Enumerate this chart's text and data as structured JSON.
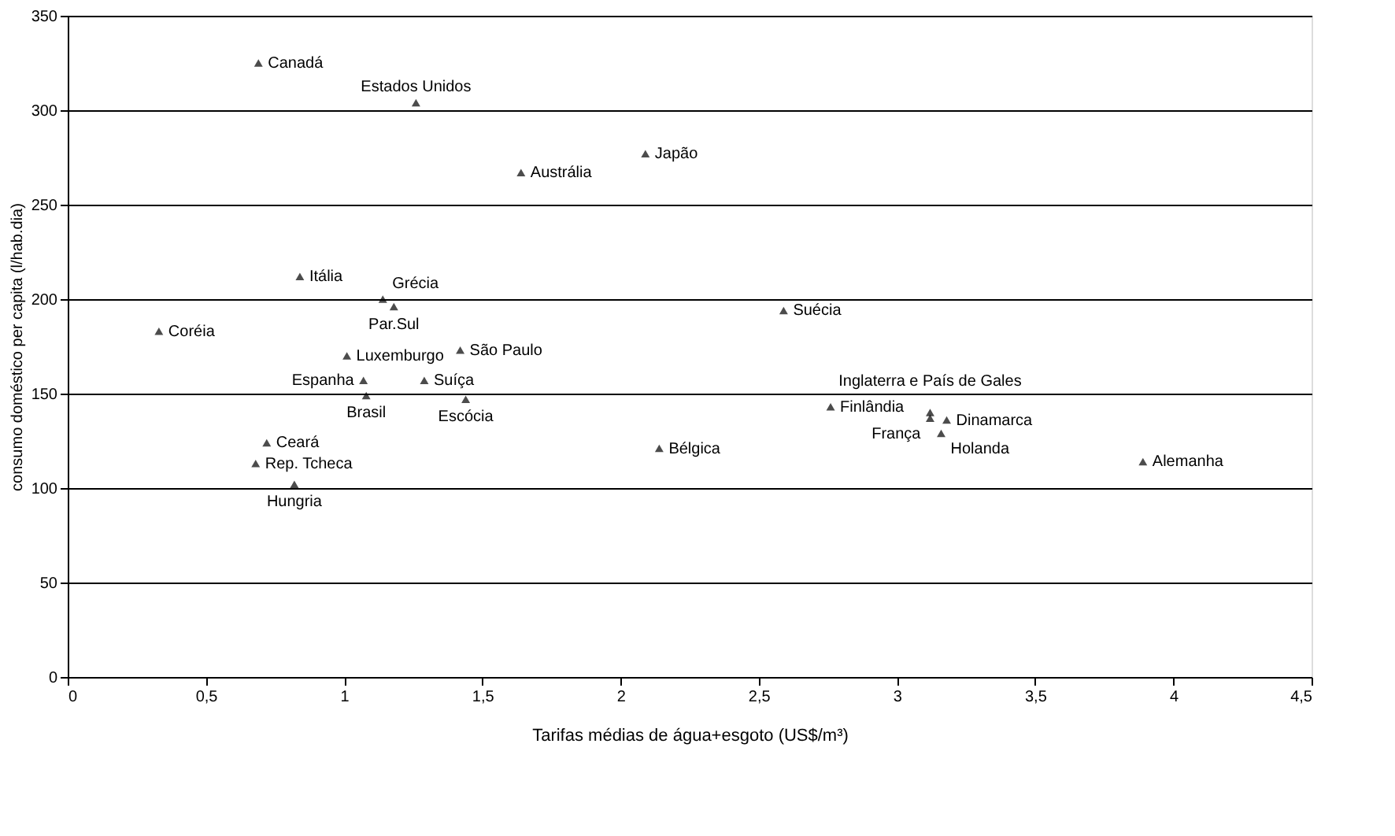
{
  "chart_data": {
    "type": "scatter",
    "xlabel": "Tarifas médias de água+esgoto (US$/m³)",
    "ylabel": "consumo doméstico per capita (l/hab.dia)",
    "x": [
      0.69,
      1.26,
      2.09,
      1.64,
      0.84,
      1.14,
      1.18,
      0.33,
      1.01,
      1.42,
      2.59,
      1.07,
      1.08,
      1.29,
      1.44,
      0.72,
      0.68,
      0.82,
      2.14,
      2.76,
      3.12,
      3.12,
      3.18,
      3.16,
      3.89
    ],
    "series": [
      {
        "color": "#000000",
        "values": [
          325,
          304,
          277,
          267,
          212,
          200,
          196,
          183,
          170,
          173,
          194,
          157,
          149,
          157,
          147,
          124,
          113,
          102,
          121,
          143,
          137,
          140,
          136,
          129,
          114
        ]
      }
    ],
    "annotations": [
      {
        "text": "Canadá",
        "x": 0.69,
        "y": 325
      },
      {
        "text": "Estados Unidos",
        "x": 1.26,
        "y": 304
      },
      {
        "text": "Japão",
        "x": 2.09,
        "y": 277
      },
      {
        "text": "Austrália",
        "x": 1.64,
        "y": 267
      },
      {
        "text": "Itália",
        "x": 0.84,
        "y": 212
      },
      {
        "text": "Grécia",
        "x": 1.14,
        "y": 200
      },
      {
        "text": "Par.Sul",
        "x": 1.18,
        "y": 196
      },
      {
        "text": "Coréia",
        "x": 0.33,
        "y": 183
      },
      {
        "text": "Luxemburgo",
        "x": 1.01,
        "y": 170
      },
      {
        "text": "São Paulo",
        "x": 1.42,
        "y": 173
      },
      {
        "text": "Suécia",
        "x": 2.59,
        "y": 194
      },
      {
        "text": "Espanha",
        "x": 1.07,
        "y": 157
      },
      {
        "text": "Brasil",
        "x": 1.08,
        "y": 149
      },
      {
        "text": "Suíça",
        "x": 1.29,
        "y": 157
      },
      {
        "text": "Escócia",
        "x": 1.44,
        "y": 147
      },
      {
        "text": "Ceará",
        "x": 0.72,
        "y": 124
      },
      {
        "text": "Rep. Tcheca",
        "x": 0.68,
        "y": 113
      },
      {
        "text": "Hungria",
        "x": 0.82,
        "y": 102
      },
      {
        "text": "Bélgica",
        "x": 2.14,
        "y": 121
      },
      {
        "text": "Finlândia",
        "x": 2.76,
        "y": 143
      },
      {
        "text": "França",
        "x": 3.12,
        "y": 137
      },
      {
        "text": "Inglaterra e País de Gales",
        "x": 3.12,
        "y": 140
      },
      {
        "text": "Dinamarca",
        "x": 3.18,
        "y": 136
      },
      {
        "text": "Holanda",
        "x": 3.16,
        "y": 129
      },
      {
        "text": "Alemanha",
        "x": 3.89,
        "y": 114
      }
    ],
    "xlim": [
      0,
      4.5
    ],
    "ylim": [
      0,
      350
    ],
    "xticks": [
      0,
      {
        "value": 0.5,
        "label": "0,5"
      },
      1,
      {
        "value": 1.5,
        "label": "1,5"
      },
      2,
      {
        "value": 2.5,
        "label": "2,5"
      },
      3,
      {
        "value": 3.5,
        "label": "3,5"
      },
      4,
      {
        "value": 4.5,
        "label": "4,5"
      }
    ],
    "yticks": [
      0,
      50,
      100,
      150,
      200,
      250,
      300,
      350
    ],
    "grid": "y",
    "marker": "triangle"
  }
}
